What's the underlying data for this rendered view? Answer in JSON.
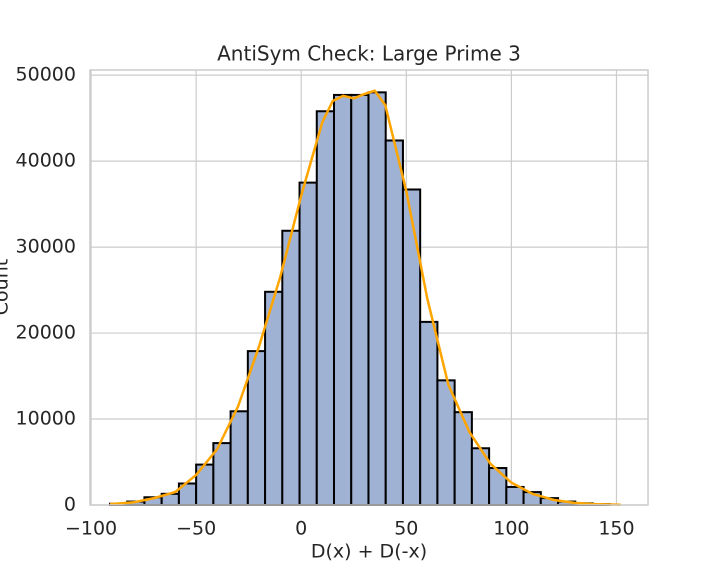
{
  "chart_data": {
    "type": "histogram",
    "title": "AntiSym Check: Large Prime 3",
    "xlabel": "D(x) + D(-x)",
    "ylabel": "Count",
    "bins": [
      -91,
      -82.8,
      -74.6,
      -66.4,
      -58.2,
      -50,
      -41.8,
      -33.6,
      -25.4,
      -17.2,
      -9,
      -0.8,
      7.4,
      15.6,
      23.8,
      32,
      40.2,
      48.4,
      56.6,
      64.8,
      73,
      81.2,
      89.4,
      97.6,
      105.8,
      114,
      122.2,
      130.4,
      138.6,
      146.8
    ],
    "values": [
      150,
      400,
      900,
      1300,
      2500,
      4700,
      7200,
      10900,
      17900,
      24800,
      31900,
      37500,
      45800,
      47700,
      47700,
      48000,
      42400,
      36700,
      21300,
      14500,
      10800,
      6600,
      4300,
      2100,
      1500,
      800,
      400,
      200,
      100
    ],
    "color": "#a0b2d3",
    "edgecolor": "#000000",
    "kde": {
      "color": "#ffa500",
      "x": [
        -91,
        -80,
        -70,
        -60,
        -50,
        -40,
        -30,
        -20,
        -10,
        0,
        10,
        15,
        20,
        25,
        30,
        35,
        40,
        50,
        60,
        70,
        80,
        90,
        100,
        110,
        120,
        130,
        140,
        152
      ],
      "values": [
        100,
        300,
        800,
        1500,
        3500,
        6500,
        11500,
        18500,
        26500,
        36000,
        44500,
        47000,
        47600,
        47300,
        47800,
        48200,
        46500,
        36500,
        24000,
        14000,
        8500,
        4800,
        2600,
        1300,
        600,
        250,
        100,
        30
      ]
    },
    "xlim": [
      -100.5,
      165
    ],
    "ylim": [
      0,
      50600
    ],
    "xticks": [
      {
        "value": -100,
        "label": "−100"
      },
      {
        "value": -50,
        "label": "−50"
      },
      0,
      50,
      100,
      150
    ],
    "yticks": [
      0,
      10000,
      20000,
      30000,
      40000,
      50000
    ],
    "grid": true
  }
}
